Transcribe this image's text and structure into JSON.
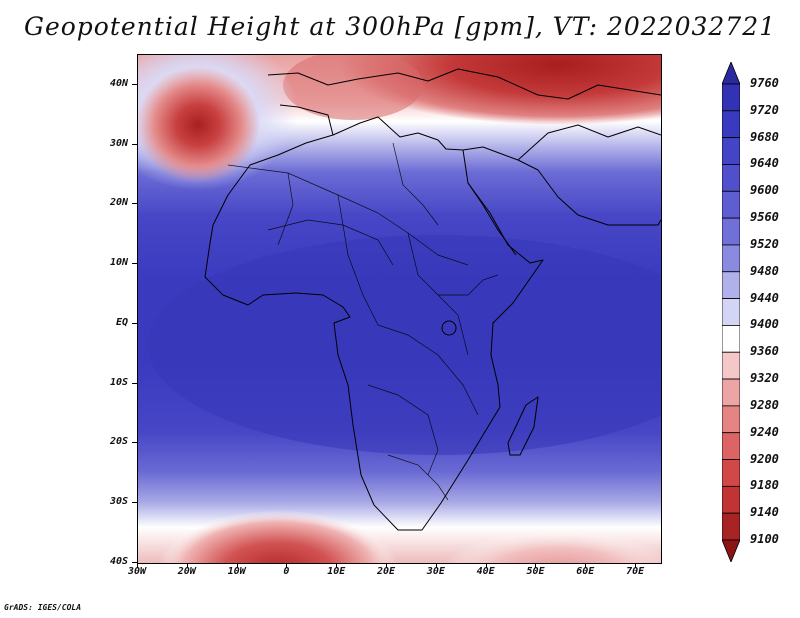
{
  "title": "Geopotential Height at 300hPa [gpm], VT: 2022032721",
  "credit": "GrADS: IGES/COLA",
  "map": {
    "lon_range": [
      -30,
      75
    ],
    "lat_range": [
      -40,
      45
    ],
    "lat_ticks": [
      {
        "value": 40,
        "label": "40N"
      },
      {
        "value": 30,
        "label": "30N"
      },
      {
        "value": 20,
        "label": "20N"
      },
      {
        "value": 10,
        "label": "10N"
      },
      {
        "value": 0,
        "label": "EQ"
      },
      {
        "value": -10,
        "label": "10S"
      },
      {
        "value": -20,
        "label": "20S"
      },
      {
        "value": -30,
        "label": "30S"
      },
      {
        "value": -40,
        "label": "40S"
      }
    ],
    "lon_ticks": [
      {
        "value": -30,
        "label": "30W"
      },
      {
        "value": -20,
        "label": "20W"
      },
      {
        "value": -10,
        "label": "10W"
      },
      {
        "value": 0,
        "label": "0"
      },
      {
        "value": 10,
        "label": "10E"
      },
      {
        "value": 20,
        "label": "20E"
      },
      {
        "value": 30,
        "label": "30E"
      },
      {
        "value": 40,
        "label": "40E"
      },
      {
        "value": 50,
        "label": "50E"
      },
      {
        "value": 60,
        "label": "60E"
      },
      {
        "value": 70,
        "label": "70E"
      }
    ]
  },
  "colorbar": {
    "levels": [
      "9760",
      "9720",
      "9680",
      "9640",
      "9600",
      "9560",
      "9520",
      "9480",
      "9440",
      "9400",
      "9360",
      "9320",
      "9280",
      "9240",
      "9200",
      "9180",
      "9140",
      "9100"
    ],
    "colors": [
      "#2a2aa0",
      "#3232b4",
      "#3a3ac0",
      "#4444c6",
      "#5050cc",
      "#5e5ed2",
      "#7070d8",
      "#8a8ae0",
      "#b0b0ea",
      "#d4d4f4",
      "#ffffff",
      "#f4c8c8",
      "#eca4a4",
      "#e48484",
      "#dc6464",
      "#d04848",
      "#c03434",
      "#a82424",
      "#8c1414"
    ]
  }
}
